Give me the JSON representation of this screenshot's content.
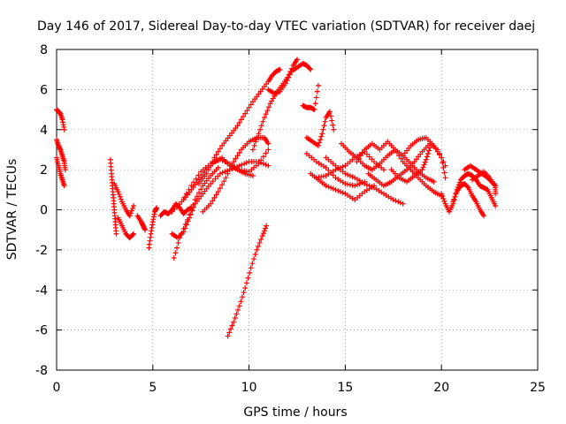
{
  "chart_data": {
    "type": "scatter",
    "title": "Day 146 of 2017, Sidereal Day-to-day VTEC variation (SDTVAR) for receiver daej",
    "xlabel": "GPS time / hours",
    "ylabel": "SDTVAR / TECUs",
    "xlim": [
      0,
      25
    ],
    "ylim": [
      -8,
      8
    ],
    "x_ticks": [
      0,
      5,
      10,
      15,
      20,
      25
    ],
    "y_ticks": [
      -8,
      -6,
      -4,
      -2,
      0,
      2,
      4,
      6,
      8
    ],
    "x_tick_labels": [
      "0",
      "5",
      "10",
      "15",
      "20",
      "25"
    ],
    "y_tick_labels": [
      "-8",
      "-6",
      "-4",
      "-2",
      "0",
      "2",
      "4",
      "6",
      "8"
    ],
    "grid": true,
    "marker": "+",
    "series": [
      {
        "name": "daej",
        "color": "#ff0000",
        "segments": [
          [
            [
              0.0,
              5.0
            ],
            [
              0.1,
              4.9
            ],
            [
              0.2,
              4.8
            ],
            [
              0.3,
              4.5
            ],
            [
              0.4,
              4.0
            ]
          ],
          [
            [
              0.0,
              3.5
            ],
            [
              0.1,
              3.2
            ],
            [
              0.2,
              3.0
            ],
            [
              0.3,
              2.7
            ],
            [
              0.4,
              2.4
            ],
            [
              0.45,
              2.0
            ]
          ],
          [
            [
              0.0,
              2.6
            ],
            [
              0.1,
              2.2
            ],
            [
              0.2,
              1.8
            ],
            [
              0.3,
              1.5
            ],
            [
              0.4,
              1.2
            ]
          ],
          [
            [
              2.8,
              2.5
            ],
            [
              2.85,
              1.8
            ],
            [
              2.9,
              1.2
            ],
            [
              2.95,
              0.6
            ],
            [
              3.0,
              0.0
            ],
            [
              3.05,
              -0.6
            ],
            [
              3.1,
              -1.2
            ]
          ],
          [
            [
              3.0,
              1.3
            ],
            [
              3.2,
              0.9
            ],
            [
              3.4,
              0.4
            ],
            [
              3.6,
              0.0
            ],
            [
              3.8,
              -0.3
            ],
            [
              4.0,
              0.2
            ]
          ],
          [
            [
              3.2,
              -0.4
            ],
            [
              3.4,
              -0.8
            ],
            [
              3.6,
              -1.2
            ],
            [
              3.8,
              -1.4
            ],
            [
              4.0,
              -1.2
            ]
          ],
          [
            [
              4.2,
              -0.3
            ],
            [
              4.4,
              -0.6
            ],
            [
              4.5,
              -0.8
            ],
            [
              4.6,
              -1.0
            ]
          ],
          [
            [
              4.8,
              -1.9
            ],
            [
              4.9,
              -1.2
            ],
            [
              5.0,
              -0.6
            ],
            [
              5.1,
              -0.1
            ],
            [
              5.2,
              0.1
            ]
          ],
          [
            [
              5.4,
              -0.3
            ],
            [
              5.6,
              -0.1
            ],
            [
              5.8,
              -0.2
            ],
            [
              6.0,
              0.0
            ],
            [
              6.2,
              0.3
            ],
            [
              6.4,
              0.1
            ],
            [
              6.6,
              -0.2
            ],
            [
              6.8,
              0.0
            ],
            [
              7.0,
              0.1
            ]
          ],
          [
            [
              6.0,
              -1.2
            ],
            [
              6.3,
              -1.4
            ],
            [
              6.6,
              -1.1
            ],
            [
              6.9,
              -0.4
            ],
            [
              7.2,
              0.3
            ],
            [
              7.6,
              0.8
            ],
            [
              8.0,
              1.3
            ],
            [
              8.5,
              1.8
            ],
            [
              9.0,
              2.0
            ],
            [
              9.5,
              2.2
            ],
            [
              10.0,
              2.4
            ],
            [
              10.5,
              2.4
            ],
            [
              11.0,
              2.2
            ]
          ],
          [
            [
              6.1,
              -2.4
            ],
            [
              6.4,
              -1.4
            ],
            [
              6.8,
              -0.5
            ],
            [
              7.2,
              0.5
            ],
            [
              7.6,
              1.2
            ],
            [
              8.0,
              1.7
            ],
            [
              8.4,
              2.1
            ]
          ],
          [
            [
              6.6,
              0.5
            ],
            [
              7.0,
              1.0
            ],
            [
              7.4,
              1.5
            ],
            [
              7.8,
              2.0
            ],
            [
              8.2,
              2.4
            ],
            [
              8.6,
              2.6
            ],
            [
              9.0,
              2.2
            ],
            [
              9.4,
              2.0
            ],
            [
              9.8,
              1.8
            ],
            [
              10.2,
              1.7
            ]
          ],
          [
            [
              6.0,
              -0.1
            ],
            [
              6.5,
              0.4
            ],
            [
              7.0,
              1.2
            ],
            [
              7.5,
              1.9
            ],
            [
              8.0,
              2.3
            ],
            [
              8.5,
              2.5
            ],
            [
              9.0,
              2.3
            ],
            [
              9.5,
              2.0
            ],
            [
              10.0,
              1.9
            ],
            [
              10.5,
              2.3
            ],
            [
              11.0,
              3.0
            ]
          ],
          [
            [
              7.6,
              -0.1
            ],
            [
              8.0,
              0.3
            ],
            [
              8.4,
              0.9
            ],
            [
              8.8,
              1.6
            ],
            [
              9.2,
              2.4
            ],
            [
              9.6,
              3.0
            ],
            [
              10.0,
              3.4
            ],
            [
              10.4,
              3.6
            ],
            [
              10.8,
              3.6
            ],
            [
              11.0,
              3.3
            ]
          ],
          [
            [
              7.4,
              1.3
            ],
            [
              7.8,
              1.8
            ],
            [
              8.2,
              2.6
            ],
            [
              8.6,
              3.2
            ],
            [
              9.0,
              3.7
            ],
            [
              9.4,
              4.2
            ],
            [
              9.8,
              4.8
            ],
            [
              10.2,
              5.4
            ],
            [
              10.6,
              5.9
            ],
            [
              11.0,
              6.4
            ],
            [
              11.2,
              6.7
            ],
            [
              11.4,
              6.9
            ],
            [
              11.6,
              7.0
            ]
          ],
          [
            [
              8.9,
              -6.3
            ],
            [
              9.2,
              -5.6
            ],
            [
              9.5,
              -4.8
            ],
            [
              9.8,
              -3.9
            ],
            [
              10.1,
              -2.9
            ],
            [
              10.4,
              -2.0
            ],
            [
              10.7,
              -1.3
            ],
            [
              10.9,
              -0.8
            ]
          ],
          [
            [
              10.2,
              3.0
            ],
            [
              10.5,
              3.8
            ],
            [
              10.8,
              4.6
            ],
            [
              11.1,
              5.3
            ],
            [
              11.4,
              5.8
            ],
            [
              11.7,
              6.2
            ],
            [
              12.0,
              6.6
            ],
            [
              12.3,
              7.2
            ],
            [
              12.5,
              7.5
            ]
          ],
          [
            [
              11.0,
              6.0
            ],
            [
              11.3,
              5.8
            ],
            [
              11.6,
              5.9
            ],
            [
              11.9,
              6.3
            ],
            [
              12.2,
              6.9
            ],
            [
              12.5,
              7.1
            ],
            [
              12.8,
              7.3
            ],
            [
              13.0,
              7.2
            ],
            [
              13.2,
              7.0
            ]
          ],
          [
            [
              12.8,
              5.2
            ],
            [
              13.0,
              5.1
            ],
            [
              13.2,
              5.1
            ],
            [
              13.4,
              5.0
            ],
            [
              13.6,
              6.2
            ]
          ],
          [
            [
              13.0,
              3.6
            ],
            [
              13.3,
              3.4
            ],
            [
              13.6,
              3.2
            ],
            [
              13.8,
              3.8
            ],
            [
              14.0,
              4.6
            ],
            [
              14.2,
              4.9
            ],
            [
              14.4,
              4.0
            ]
          ],
          [
            [
              13.0,
              2.8
            ],
            [
              13.5,
              2.4
            ],
            [
              14.0,
              2.1
            ],
            [
              14.5,
              1.6
            ],
            [
              15.0,
              1.3
            ],
            [
              15.5,
              1.2
            ],
            [
              16.0,
              1.4
            ]
          ],
          [
            [
              13.2,
              1.8
            ],
            [
              13.6,
              1.5
            ],
            [
              14.0,
              1.2
            ],
            [
              14.5,
              1.0
            ],
            [
              15.0,
              0.8
            ],
            [
              15.5,
              0.5
            ],
            [
              16.0,
              0.9
            ],
            [
              16.5,
              1.2
            ]
          ],
          [
            [
              13.5,
              1.6
            ],
            [
              14.0,
              1.7
            ],
            [
              14.5,
              2.0
            ],
            [
              15.0,
              2.2
            ],
            [
              15.5,
              2.6
            ],
            [
              16.0,
              2.9
            ],
            [
              16.5,
              2.4
            ],
            [
              17.0,
              2.0
            ]
          ],
          [
            [
              14.0,
              2.6
            ],
            [
              14.5,
              2.2
            ],
            [
              15.0,
              1.8
            ],
            [
              15.5,
              1.6
            ],
            [
              16.0,
              1.3
            ],
            [
              16.5,
              1.1
            ],
            [
              17.0,
              0.8
            ],
            [
              17.5,
              0.5
            ],
            [
              18.0,
              0.3
            ]
          ],
          [
            [
              14.8,
              3.3
            ],
            [
              15.2,
              2.9
            ],
            [
              15.6,
              2.6
            ],
            [
              16.0,
              2.2
            ],
            [
              16.4,
              2.0
            ],
            [
              16.8,
              2.3
            ],
            [
              17.2,
              2.7
            ],
            [
              17.6,
              3.0
            ],
            [
              18.0,
              2.7
            ],
            [
              18.4,
              2.3
            ],
            [
              18.8,
              1.9
            ],
            [
              19.2,
              1.6
            ],
            [
              19.6,
              1.4
            ]
          ],
          [
            [
              15.6,
              2.4
            ],
            [
              16.0,
              3.0
            ],
            [
              16.4,
              3.3
            ],
            [
              16.8,
              3.0
            ],
            [
              17.2,
              3.4
            ],
            [
              17.6,
              3.0
            ],
            [
              18.0,
              2.4
            ],
            [
              18.4,
              2.0
            ],
            [
              18.8,
              1.6
            ],
            [
              19.2,
              1.2
            ],
            [
              19.6,
              0.9
            ],
            [
              20.0,
              0.7
            ]
          ],
          [
            [
              16.2,
              1.8
            ],
            [
              16.6,
              1.5
            ],
            [
              17.0,
              1.2
            ],
            [
              17.4,
              1.4
            ],
            [
              17.8,
              1.7
            ],
            [
              18.2,
              2.0
            ],
            [
              18.6,
              2.4
            ],
            [
              19.0,
              2.9
            ],
            [
              19.4,
              3.3
            ],
            [
              19.8,
              3.0
            ],
            [
              20.2,
              2.2
            ]
          ],
          [
            [
              17.4,
              2.0
            ],
            [
              17.8,
              1.6
            ],
            [
              18.2,
              1.4
            ],
            [
              18.6,
              1.7
            ],
            [
              19.0,
              2.0
            ],
            [
              19.2,
              2.5
            ],
            [
              19.4,
              3.1
            ]
          ],
          [
            [
              18.0,
              2.7
            ],
            [
              18.4,
              3.2
            ],
            [
              18.8,
              3.5
            ],
            [
              19.2,
              3.6
            ],
            [
              19.6,
              3.2
            ],
            [
              20.0,
              2.6
            ],
            [
              20.2,
              1.6
            ]
          ],
          [
            [
              20.0,
              0.8
            ],
            [
              20.2,
              0.3
            ],
            [
              20.4,
              -0.1
            ],
            [
              20.6,
              0.3
            ],
            [
              20.8,
              1.0
            ],
            [
              21.0,
              1.5
            ],
            [
              21.2,
              1.7
            ],
            [
              21.4,
              1.8
            ],
            [
              21.6,
              1.7
            ],
            [
              21.8,
              1.5
            ],
            [
              22.0,
              1.2
            ],
            [
              22.2,
              1.1
            ],
            [
              22.4,
              1.0
            ],
            [
              22.6,
              0.6
            ],
            [
              22.8,
              0.2
            ]
          ],
          [
            [
              20.6,
              0.4
            ],
            [
              20.8,
              0.9
            ],
            [
              21.0,
              1.2
            ],
            [
              21.2,
              1.3
            ],
            [
              21.4,
              1.1
            ],
            [
              21.6,
              0.7
            ],
            [
              21.8,
              0.4
            ],
            [
              22.0,
              0.0
            ],
            [
              22.2,
              -0.3
            ]
          ],
          [
            [
              21.2,
              2.0
            ],
            [
              21.5,
              2.2
            ],
            [
              21.8,
              2.0
            ],
            [
              22.1,
              1.8
            ],
            [
              22.4,
              1.6
            ],
            [
              22.6,
              1.4
            ],
            [
              22.8,
              1.2
            ]
          ],
          [
            [
              21.6,
              1.5
            ],
            [
              21.9,
              1.7
            ],
            [
              22.2,
              1.9
            ],
            [
              22.5,
              1.6
            ],
            [
              22.8,
              1.2
            ],
            [
              22.8,
              0.8
            ]
          ]
        ]
      }
    ]
  }
}
